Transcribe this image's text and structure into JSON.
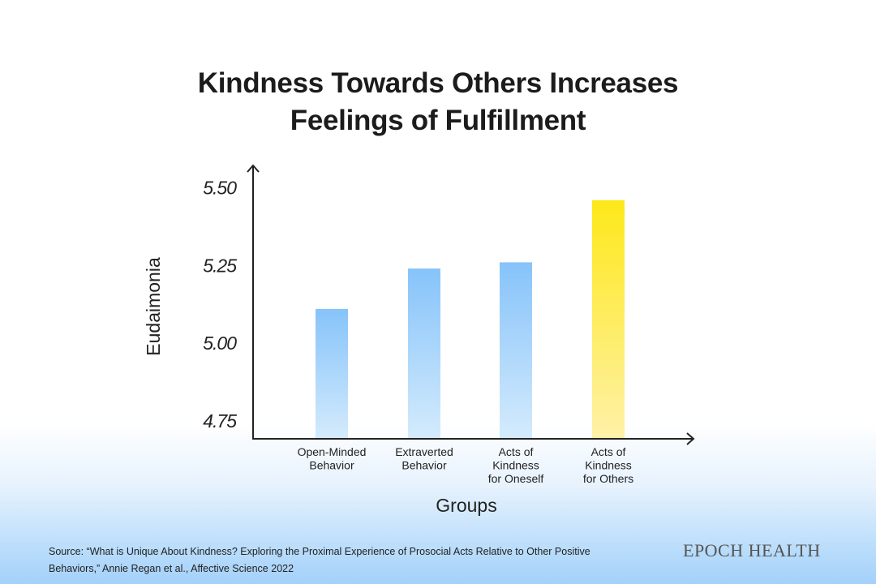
{
  "chart_data": {
    "type": "bar",
    "title_lines": [
      "Kindness Towards Others Increases",
      "Feelings of Fulfillment"
    ],
    "xlabel": "Groups",
    "ylabel": "Eudaimonia",
    "ylim": [
      4.7,
      5.55
    ],
    "yticks": [
      "5.50",
      "5.25",
      "5.00",
      "4.75"
    ],
    "ytick_values": [
      5.5,
      5.25,
      5.0,
      4.75
    ],
    "categories": [
      [
        "Open-Minded",
        "Behavior"
      ],
      [
        "Extraverted",
        "Behavior"
      ],
      [
        "Acts of",
        "Kindness",
        "for Oneself"
      ],
      [
        "Acts of",
        "Kindness",
        "for Others"
      ]
    ],
    "values": [
      5.11,
      5.24,
      5.26,
      5.46
    ],
    "highlight_index": 3,
    "grid": false
  },
  "colors": {
    "bar_top": "#86c3fa",
    "bar_bottom": "#d4ebfc",
    "highlight_top": "#fde81a",
    "highlight_bottom": "#fff1a8",
    "axis": "#222222"
  },
  "source": "Source: “What is Unique About Kindness? Exploring the Proximal Experience of Prosocial Acts Relative to Other Positive Behaviors,” Annie Regan et al., Affective Science 2022",
  "brand": "EPOCH HEALTH"
}
